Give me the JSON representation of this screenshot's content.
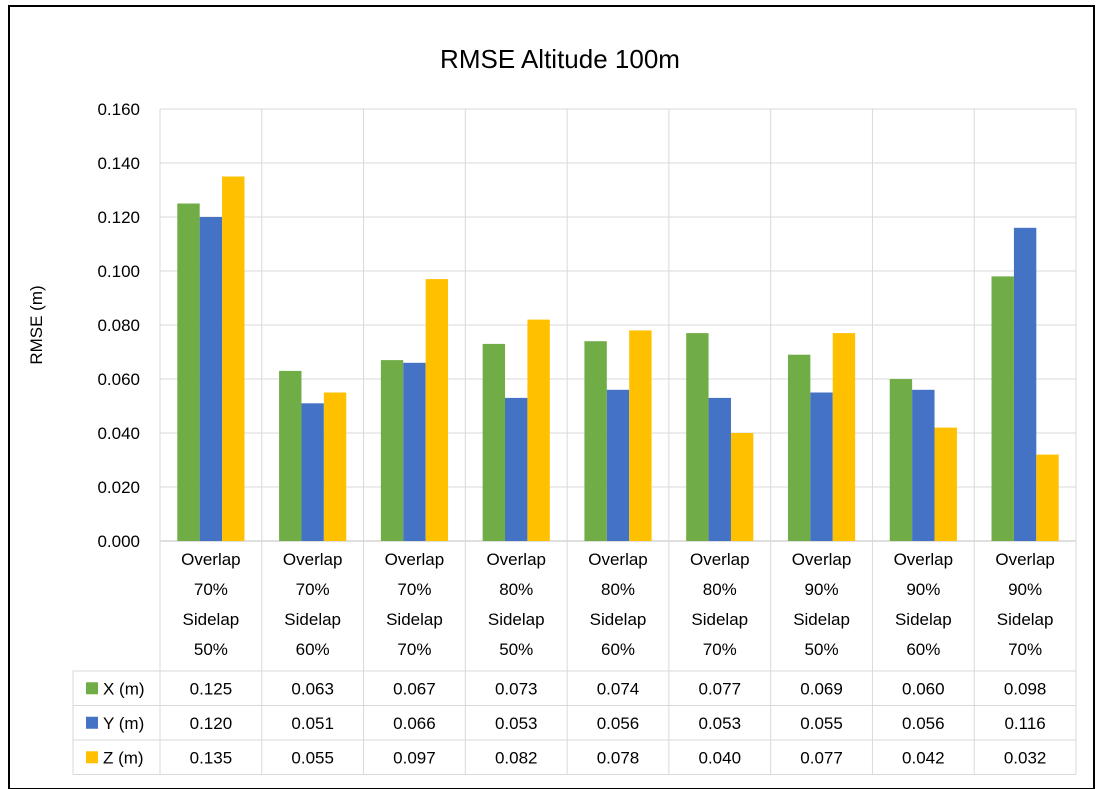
{
  "chart_data": {
    "type": "bar",
    "title": "RMSE Altitude 100m",
    "ylabel": "RMSE (m)",
    "xlabel": "",
    "ylim": [
      0,
      0.16
    ],
    "y_ticks": [
      "0.000",
      "0.020",
      "0.040",
      "0.060",
      "0.080",
      "0.100",
      "0.120",
      "0.140",
      "0.160"
    ],
    "grid": true,
    "legend": "data-table",
    "categories": [
      [
        "Overlap",
        "70%",
        "Sidelap",
        "50%"
      ],
      [
        "Overlap",
        "70%",
        "Sidelap",
        "60%"
      ],
      [
        "Overlap",
        "70%",
        "Sidelap",
        "70%"
      ],
      [
        "Overlap",
        "80%",
        "Sidelap",
        "50%"
      ],
      [
        "Overlap",
        "80%",
        "Sidelap",
        "60%"
      ],
      [
        "Overlap",
        "80%",
        "Sidelap",
        "70%"
      ],
      [
        "Overlap",
        "90%",
        "Sidelap",
        "50%"
      ],
      [
        "Overlap",
        "90%",
        "Sidelap",
        "60%"
      ],
      [
        "Overlap",
        "90%",
        "Sidelap",
        "70%"
      ]
    ],
    "series": [
      {
        "name": "X (m)",
        "color": "#70ad47",
        "values": [
          0.125,
          0.063,
          0.067,
          0.073,
          0.074,
          0.077,
          0.069,
          0.06,
          0.098
        ],
        "labels": [
          "0.125",
          "0.063",
          "0.067",
          "0.073",
          "0.074",
          "0.077",
          "0.069",
          "0.060",
          "0.098"
        ]
      },
      {
        "name": "Y (m)",
        "color": "#4472c4",
        "values": [
          0.12,
          0.051,
          0.066,
          0.053,
          0.056,
          0.053,
          0.055,
          0.056,
          0.116
        ],
        "labels": [
          "0.120",
          "0.051",
          "0.066",
          "0.053",
          "0.056",
          "0.053",
          "0.055",
          "0.056",
          "0.116"
        ]
      },
      {
        "name": "Z (m)",
        "color": "#ffc000",
        "values": [
          0.135,
          0.055,
          0.097,
          0.082,
          0.078,
          0.04,
          0.077,
          0.042,
          0.032
        ],
        "labels": [
          "0.135",
          "0.055",
          "0.097",
          "0.082",
          "0.078",
          "0.040",
          "0.077",
          "0.042",
          "0.032"
        ]
      }
    ]
  }
}
